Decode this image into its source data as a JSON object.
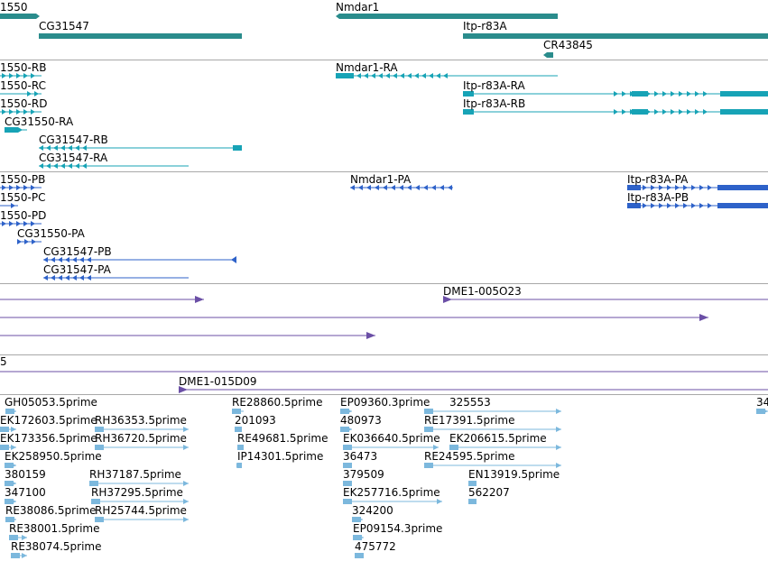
{
  "colors": {
    "gene": "#2a8c8c",
    "transcript": "#17a3b6",
    "protein": "#2e62c9",
    "cdna": "#6b4fa6",
    "est": "#7cb8dd",
    "divider": "#a8a8a8"
  },
  "tracks": {
    "genes": {
      "features": [
        {
          "label": "1550",
          "icon": "gene-bar-icon"
        },
        {
          "label": "CG31547",
          "icon": "gene-bar-icon"
        },
        {
          "label": "Nmdar1",
          "icon": "gene-bar-icon"
        },
        {
          "label": "Itp-r83A",
          "icon": "gene-bar-icon"
        },
        {
          "label": "CR43845",
          "icon": "gene-bar-icon"
        }
      ]
    },
    "transcripts": {
      "features": [
        {
          "label": "1550-RB"
        },
        {
          "label": "1550-RC"
        },
        {
          "label": "1550-RD"
        },
        {
          "label": "CG31550-RA"
        },
        {
          "label": "CG31547-RB"
        },
        {
          "label": "CG31547-RA"
        },
        {
          "label": "Nmdar1-RA"
        },
        {
          "label": "Itp-r83A-RA"
        },
        {
          "label": "Itp-r83A-RB"
        }
      ]
    },
    "proteins": {
      "features": [
        {
          "label": "1550-PB"
        },
        {
          "label": "1550-PC"
        },
        {
          "label": "1550-PD"
        },
        {
          "label": "CG31550-PA"
        },
        {
          "label": "CG31547-PB"
        },
        {
          "label": "CG31547-PA"
        },
        {
          "label": "Nmdar1-PA"
        },
        {
          "label": "Itp-r83A-PA"
        },
        {
          "label": "Itp-r83A-PB"
        }
      ]
    },
    "cdna": {
      "features": [
        {
          "label": "DME1-005O23"
        },
        {
          "label": "5"
        },
        {
          "label": "DME1-015D09"
        }
      ]
    },
    "ests": {
      "features": [
        {
          "label": "GH05053.5prime"
        },
        {
          "label": "EK172603.5prime"
        },
        {
          "label": "RH36353.5prime"
        },
        {
          "label": "EK173356.5prime"
        },
        {
          "label": "RH36720.5prime"
        },
        {
          "label": "EK258950.5prime"
        },
        {
          "label": "380159"
        },
        {
          "label": "RH37187.5prime"
        },
        {
          "label": "347100"
        },
        {
          "label": "RH37295.5prime"
        },
        {
          "label": "RE38086.5prime"
        },
        {
          "label": "RH25744.5prime"
        },
        {
          "label": "RE38001.5prime"
        },
        {
          "label": "RE38074.5prime"
        },
        {
          "label": "RE28860.5prime"
        },
        {
          "label": "201093"
        },
        {
          "label": "RE49681.5prime"
        },
        {
          "label": "IP14301.5prime"
        },
        {
          "label": "EP09360.3prime"
        },
        {
          "label": "325553"
        },
        {
          "label": "480973"
        },
        {
          "label": "RE17391.5prime"
        },
        {
          "label": "EK036640.5prime"
        },
        {
          "label": "EK206615.5prime"
        },
        {
          "label": "36473"
        },
        {
          "label": "RE24595.5prime"
        },
        {
          "label": "379509"
        },
        {
          "label": "EN13919.5prime"
        },
        {
          "label": "EK257716.5prime"
        },
        {
          "label": "562207"
        },
        {
          "label": "324200"
        },
        {
          "label": "EP09154.3prime"
        },
        {
          "label": "475772"
        },
        {
          "label": "34"
        }
      ]
    }
  }
}
